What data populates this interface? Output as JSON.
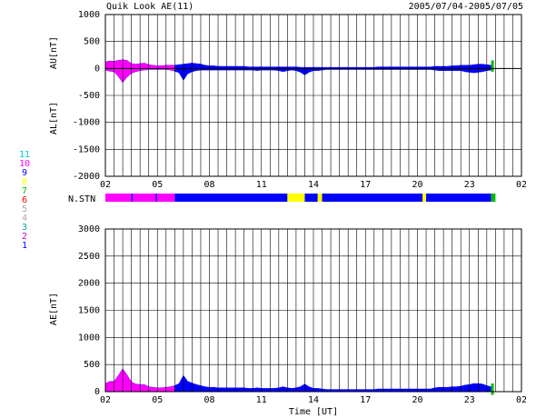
{
  "header": {
    "title": "Quik Look AE(11)",
    "date_range": "2005/07/04-2005/07/05"
  },
  "station_legend": {
    "numbers": [
      "11",
      "10",
      "9",
      "8",
      "7",
      "6",
      "5",
      "4",
      "3",
      "2",
      "1"
    ],
    "colors": [
      "#00cccc",
      "#ff00ff",
      "#0000ff",
      "#ffff00",
      "#00bb00",
      "#ff0000",
      "#aaaaaa",
      "#aaaaaa",
      "#00aaaa",
      "#cc00cc",
      "#0000ff"
    ]
  },
  "colors": {
    "ae_fill": "#0000ff",
    "low_station_fill": "#ff00ff",
    "gap_fill": "#ffff00",
    "end_marker": "#00bb00",
    "grid": "#000000"
  },
  "chart_data": [
    {
      "type": "area",
      "panel": "AU/AL",
      "ylabel_top": "AU[nT]",
      "ylabel_bottom": "AL[nT]",
      "ylim": [
        -2000,
        1000
      ],
      "yticks": [
        1000,
        500,
        0,
        -500,
        -1000,
        -1500,
        -2000
      ],
      "xticks": [
        "02",
        "05",
        "08",
        "11",
        "14",
        "17",
        "20",
        "23",
        "02"
      ],
      "x_unit": "hours UT from 02:00",
      "grid": true,
      "x": [
        0,
        0.5,
        1,
        1.5,
        2,
        2.5,
        3,
        3.5,
        4,
        4.5,
        5,
        5.5,
        6,
        6.5,
        7,
        7.5,
        8,
        8.5,
        9,
        9.5,
        10,
        10.5,
        11,
        11.5,
        12,
        12.5,
        13,
        13.5,
        14,
        14.5,
        15,
        15.5,
        16,
        16.5,
        17,
        17.5,
        18,
        18.5,
        19,
        19.5,
        20,
        20.5,
        21,
        21.5,
        22,
        22.5,
        23,
        23.5,
        24,
        24.5,
        25,
        25.5,
        26,
        26.5,
        27,
        27.5,
        28,
        28.5,
        29,
        29.5,
        30,
        30.5,
        31,
        31.5,
        32,
        32.5,
        33,
        33.5,
        34,
        34.5,
        35,
        35.5,
        36,
        36.5,
        37,
        37.5,
        38,
        38.5,
        39,
        39.5,
        40,
        40.5,
        41,
        41.5,
        42,
        42.5,
        43,
        43.5,
        44,
        44.5
      ],
      "series": [
        {
          "name": "AU",
          "values": [
            120,
            140,
            130,
            150,
            160,
            150,
            90,
            80,
            90,
            100,
            70,
            60,
            50,
            50,
            60,
            60,
            60,
            70,
            80,
            90,
            100,
            90,
            80,
            60,
            50,
            50,
            40,
            40,
            40,
            40,
            40,
            40,
            40,
            30,
            30,
            30,
            30,
            30,
            30,
            30,
            30,
            30,
            30,
            30,
            30,
            20,
            20,
            20,
            20,
            20,
            20,
            20,
            20,
            20,
            20,
            20,
            20,
            20,
            20,
            20,
            20,
            20,
            20,
            30,
            30,
            30,
            30,
            30,
            30,
            30,
            30,
            30,
            30,
            30,
            30,
            30,
            40,
            40,
            40,
            40,
            50,
            50,
            60,
            60,
            60,
            70,
            80,
            80,
            70,
            60
          ]
        },
        {
          "name": "AL",
          "values": [
            -30,
            -50,
            -60,
            -150,
            -260,
            -160,
            -90,
            -60,
            -40,
            -30,
            -20,
            -20,
            -20,
            -20,
            -20,
            -30,
            -50,
            -80,
            -220,
            -100,
            -60,
            -40,
            -30,
            -30,
            -30,
            -30,
            -30,
            -30,
            -30,
            -30,
            -30,
            -30,
            -30,
            -30,
            -30,
            -40,
            -30,
            -30,
            -30,
            -30,
            -40,
            -60,
            -40,
            -30,
            -40,
            -70,
            -120,
            -70,
            -40,
            -40,
            -30,
            -20,
            -20,
            -20,
            -20,
            -20,
            -20,
            -20,
            -20,
            -20,
            -20,
            -20,
            -20,
            -20,
            -20,
            -20,
            -20,
            -20,
            -20,
            -20,
            -20,
            -20,
            -20,
            -20,
            -20,
            -20,
            -30,
            -40,
            -40,
            -40,
            -40,
            -40,
            -40,
            -60,
            -70,
            -80,
            -70,
            -60,
            -40,
            -30
          ]
        }
      ]
    },
    {
      "type": "area",
      "panel": "AE",
      "ylabel": "AE[nT]",
      "xlabel": "Time [UT]",
      "ylim": [
        0,
        3000
      ],
      "yticks": [
        3000,
        2500,
        2000,
        1500,
        1000,
        500,
        0
      ],
      "xticks": [
        "02",
        "05",
        "08",
        "11",
        "14",
        "17",
        "20",
        "23",
        "02"
      ],
      "x_unit": "hours UT from 02:00",
      "grid": true,
      "x": [
        0,
        0.5,
        1,
        1.5,
        2,
        2.5,
        3,
        3.5,
        4,
        4.5,
        5,
        5.5,
        6,
        6.5,
        7,
        7.5,
        8,
        8.5,
        9,
        9.5,
        10,
        10.5,
        11,
        11.5,
        12,
        12.5,
        13,
        13.5,
        14,
        14.5,
        15,
        15.5,
        16,
        16.5,
        17,
        17.5,
        18,
        18.5,
        19,
        19.5,
        20,
        20.5,
        21,
        21.5,
        22,
        22.5,
        23,
        23.5,
        24,
        24.5,
        25,
        25.5,
        26,
        26.5,
        27,
        27.5,
        28,
        28.5,
        29,
        29.5,
        30,
        30.5,
        31,
        31.5,
        32,
        32.5,
        33,
        33.5,
        34,
        34.5,
        35,
        35.5,
        36,
        36.5,
        37,
        37.5,
        38,
        38.5,
        39,
        39.5,
        40,
        40.5,
        41,
        41.5,
        42,
        42.5,
        43,
        43.5,
        44,
        44.5
      ],
      "series": [
        {
          "name": "AE",
          "values": [
            150,
            190,
            190,
            300,
            420,
            310,
            180,
            140,
            130,
            130,
            90,
            80,
            70,
            70,
            80,
            90,
            110,
            150,
            300,
            190,
            160,
            130,
            110,
            90,
            80,
            80,
            70,
            70,
            70,
            70,
            70,
            70,
            70,
            60,
            60,
            70,
            60,
            60,
            60,
            60,
            70,
            90,
            70,
            60,
            70,
            90,
            140,
            90,
            60,
            60,
            50,
            40,
            40,
            40,
            40,
            40,
            40,
            40,
            40,
            40,
            40,
            40,
            40,
            50,
            50,
            50,
            50,
            50,
            50,
            50,
            50,
            50,
            50,
            50,
            50,
            50,
            70,
            80,
            80,
            80,
            90,
            90,
            100,
            120,
            130,
            150,
            150,
            140,
            110,
            90
          ]
        }
      ]
    }
  ],
  "station_bar": {
    "label": "N.STN",
    "segments": [
      {
        "start": 0,
        "end": 8,
        "value": 10
      },
      {
        "start": 8,
        "end": 21,
        "value": 9
      },
      {
        "start": 21,
        "end": 23,
        "value": 8
      },
      {
        "start": 23,
        "end": 24.5,
        "value": 9
      },
      {
        "start": 24.5,
        "end": 25,
        "value": 8
      },
      {
        "start": 25,
        "end": 36.6,
        "value": 9
      },
      {
        "start": 36.6,
        "end": 37,
        "value": 8
      },
      {
        "start": 37,
        "end": 44.5,
        "value": 9
      },
      {
        "start": 44.5,
        "end": 45,
        "value": 7
      }
    ],
    "magenta_segments": [
      {
        "start": 0,
        "end": 8
      },
      {
        "start": 3,
        "end": 3.5
      },
      {
        "start": 5.5,
        "end": 6
      }
    ]
  }
}
